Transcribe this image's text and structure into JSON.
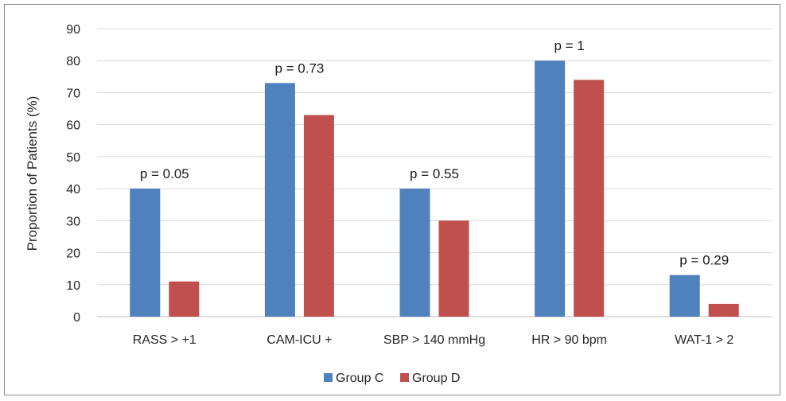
{
  "chart_data": {
    "type": "bar",
    "title": "",
    "xlabel": "",
    "ylabel": "Proportion of Patients (%)",
    "ylim": [
      0,
      90
    ],
    "yticks": [
      0,
      10,
      20,
      30,
      40,
      50,
      60,
      70,
      80,
      90
    ],
    "grid": true,
    "legend_position": "bottom",
    "categories": [
      "RASS > +1",
      "CAM-ICU +",
      "SBP > 140 mmHg",
      "HR > 90 bpm",
      "WAT-1 > 2"
    ],
    "series": [
      {
        "name": "Group C",
        "color": "#4f81bd",
        "values": [
          40,
          73,
          40,
          80,
          13
        ]
      },
      {
        "name": "Group D",
        "color": "#c0504d",
        "values": [
          11,
          63,
          30,
          74,
          4
        ]
      }
    ],
    "annotations": [
      "p = 0.05",
      "p = 0.73",
      "p = 0.55",
      "p = 1",
      "p = 0.29"
    ]
  }
}
